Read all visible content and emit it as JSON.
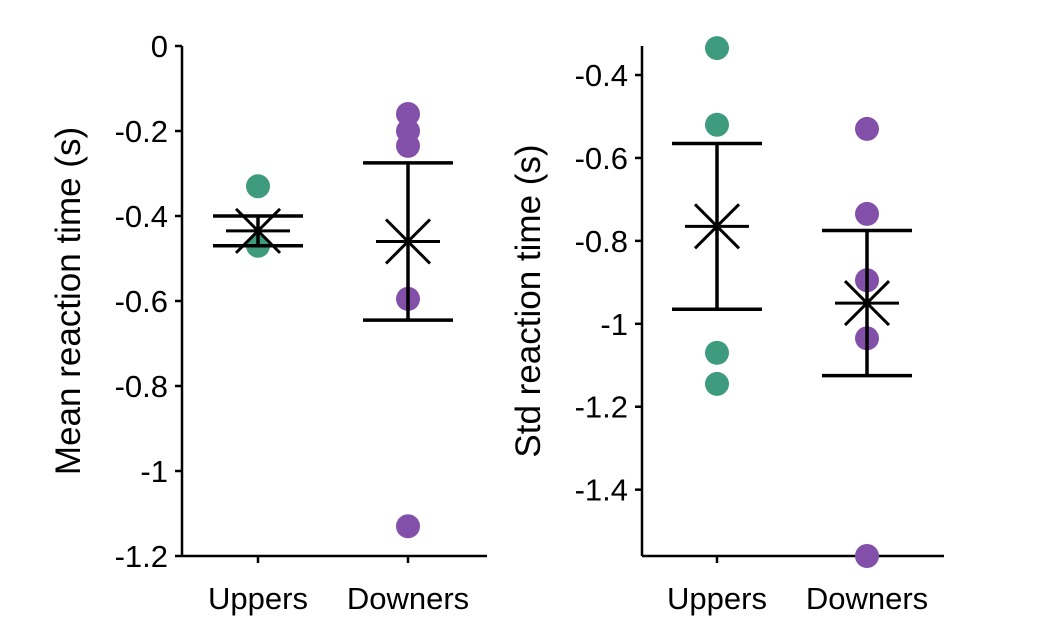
{
  "chart_data": [
    {
      "type": "scatter",
      "ylabel": "Mean reaction time (s)",
      "ylim": [
        -1.2,
        0
      ],
      "yticks": [
        0,
        -0.2,
        -0.4,
        -0.6,
        -0.8,
        -1,
        -1.2
      ],
      "ytick_labels": [
        "0",
        "-0.2",
        "-0.4",
        "-0.6",
        "-0.8",
        "-1",
        "-1.2"
      ],
      "categories": [
        "Uppers",
        "Downers"
      ],
      "series": [
        {
          "color": "#3f9b7d",
          "points": [
            -0.33,
            -0.47
          ]
        },
        {
          "color": "#8250a8",
          "points": [
            -0.16,
            -0.2,
            -0.235,
            -0.595,
            -1.13
          ]
        }
      ],
      "mean": [
        -0.435,
        -0.46
      ],
      "error_upper": [
        -0.4,
        -0.275
      ],
      "error_lower": [
        -0.47,
        -0.645
      ],
      "spine_top": 0,
      "spine_bottom": -1.2
    },
    {
      "type": "scatter",
      "ylabel": "Std reaction time (s)",
      "ylim": [
        -1.56,
        -0.33
      ],
      "yticks": [
        -0.4,
        -0.6,
        -0.8,
        -1,
        -1.2,
        -1.4
      ],
      "ytick_labels": [
        "-0.4",
        "-0.6",
        "-0.8",
        "-1",
        "-1.2",
        "-1.4"
      ],
      "categories": [
        "Uppers",
        "Downers"
      ],
      "series": [
        {
          "color": "#3f9b7d",
          "points": [
            -0.335,
            -0.52,
            -1.07,
            -1.145
          ]
        },
        {
          "color": "#8250a8",
          "points": [
            -0.53,
            -0.735,
            -0.895,
            -1.035,
            -1.56
          ]
        }
      ],
      "mean": [
        -0.765,
        -0.95
      ],
      "error_upper": [
        -0.565,
        -0.775
      ],
      "error_lower": [
        -0.965,
        -1.125
      ],
      "spine_top": -0.33,
      "spine_bottom": -1.56
    }
  ]
}
